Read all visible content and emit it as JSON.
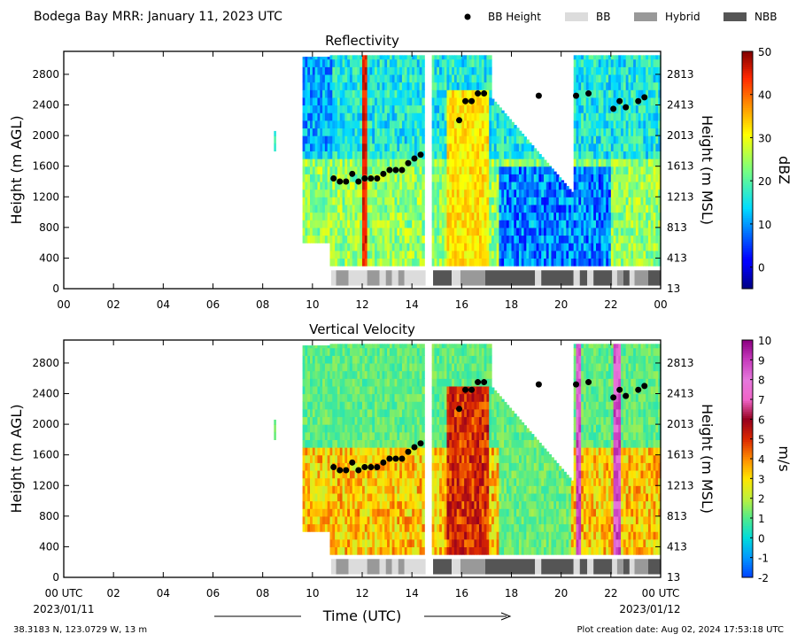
{
  "figure": {
    "title": "Bodega Bay MRR:  January 11, 2023 UTC",
    "xlabel": "Time (UTC)",
    "x_start_date": "2023/01/11",
    "x_end_date": "2023/01/12",
    "footer_left": "38.3183 N, 123.0729 W, 13 m",
    "footer_right": "Plot creation date: Aug 02, 2024 17:53:18 UTC"
  },
  "legend": [
    {
      "label": "BB Height",
      "kind": "dot",
      "color": "#000000"
    },
    {
      "label": "BB",
      "kind": "rect",
      "color": "#dcdcdc"
    },
    {
      "label": "Hybrid",
      "kind": "rect",
      "color": "#999999"
    },
    {
      "label": "NBB",
      "kind": "rect",
      "color": "#555555"
    }
  ],
  "chart_data": [
    {
      "type": "heatmap",
      "title": "Reflectivity",
      "ylabel": "Height (m AGL)",
      "y2label": "Height (m MSL)",
      "xlim": [
        0,
        24
      ],
      "ylim": [
        0,
        3100
      ],
      "x_ticks": [
        "00",
        "02",
        "04",
        "06",
        "08",
        "10",
        "12",
        "14",
        "16",
        "18",
        "20",
        "22",
        "00"
      ],
      "y_ticks": [
        0,
        400,
        800,
        1200,
        1600,
        2000,
        2400,
        2800
      ],
      "y2_ticks": [
        13,
        413,
        813,
        1213,
        1613,
        2013,
        2413,
        2813
      ],
      "colorbar": {
        "label": "dBZ",
        "min": -5,
        "max": 50,
        "ticks": [
          0,
          10,
          20,
          30,
          40,
          50
        ],
        "colormap": "jet"
      },
      "data_coverage_hours": [
        [
          8.45,
          8.52
        ],
        [
          9.6,
          14.5
        ],
        [
          14.8,
          24.0
        ]
      ],
      "bb_height": [
        {
          "x": 10.85,
          "y": 1440
        },
        {
          "x": 11.1,
          "y": 1400
        },
        {
          "x": 11.35,
          "y": 1400
        },
        {
          "x": 11.6,
          "y": 1500
        },
        {
          "x": 11.85,
          "y": 1400
        },
        {
          "x": 12.1,
          "y": 1440
        },
        {
          "x": 12.35,
          "y": 1440
        },
        {
          "x": 12.6,
          "y": 1440
        },
        {
          "x": 12.85,
          "y": 1500
        },
        {
          "x": 13.1,
          "y": 1550
        },
        {
          "x": 13.35,
          "y": 1550
        },
        {
          "x": 13.6,
          "y": 1550
        },
        {
          "x": 13.85,
          "y": 1640
        },
        {
          "x": 14.1,
          "y": 1700
        },
        {
          "x": 14.35,
          "y": 1750
        },
        {
          "x": 15.9,
          "y": 2200
        },
        {
          "x": 16.15,
          "y": 2450
        },
        {
          "x": 16.4,
          "y": 2450
        },
        {
          "x": 16.65,
          "y": 2550
        },
        {
          "x": 16.9,
          "y": 2550
        },
        {
          "x": 19.1,
          "y": 2520
        },
        {
          "x": 20.6,
          "y": 2520
        },
        {
          "x": 21.1,
          "y": 2550
        },
        {
          "x": 22.1,
          "y": 2350
        },
        {
          "x": 22.35,
          "y": 2450
        },
        {
          "x": 22.6,
          "y": 2370
        },
        {
          "x": 23.1,
          "y": 2450
        },
        {
          "x": 23.35,
          "y": 2500
        }
      ],
      "bb_type_segments": [
        {
          "start": 10.75,
          "end": 10.95,
          "type": "BB"
        },
        {
          "start": 10.95,
          "end": 11.45,
          "type": "Hybrid"
        },
        {
          "start": 11.45,
          "end": 12.2,
          "type": "BB"
        },
        {
          "start": 12.2,
          "end": 12.7,
          "type": "Hybrid"
        },
        {
          "start": 12.7,
          "end": 12.95,
          "type": "BB"
        },
        {
          "start": 12.95,
          "end": 13.2,
          "type": "Hybrid"
        },
        {
          "start": 13.2,
          "end": 13.45,
          "type": "BB"
        },
        {
          "start": 13.45,
          "end": 13.7,
          "type": "Hybrid"
        },
        {
          "start": 13.7,
          "end": 14.55,
          "type": "BB"
        },
        {
          "start": 14.85,
          "end": 15.6,
          "type": "NBB"
        },
        {
          "start": 15.6,
          "end": 15.95,
          "type": "BB"
        },
        {
          "start": 15.95,
          "end": 16.95,
          "type": "Hybrid"
        },
        {
          "start": 16.95,
          "end": 18.95,
          "type": "NBB"
        },
        {
          "start": 18.95,
          "end": 19.2,
          "type": "BB"
        },
        {
          "start": 19.2,
          "end": 20.5,
          "type": "NBB"
        },
        {
          "start": 20.5,
          "end": 20.75,
          "type": "BB"
        },
        {
          "start": 20.75,
          "end": 21.05,
          "type": "NBB"
        },
        {
          "start": 21.05,
          "end": 21.3,
          "type": "BB"
        },
        {
          "start": 21.3,
          "end": 22.05,
          "type": "NBB"
        },
        {
          "start": 22.05,
          "end": 22.25,
          "type": "BB"
        },
        {
          "start": 22.25,
          "end": 22.5,
          "type": "Hybrid"
        },
        {
          "start": 22.5,
          "end": 22.75,
          "type": "NBB"
        },
        {
          "start": 22.75,
          "end": 22.95,
          "type": "BB"
        },
        {
          "start": 22.95,
          "end": 23.5,
          "type": "Hybrid"
        },
        {
          "start": 23.5,
          "end": 24.0,
          "type": "NBB"
        }
      ]
    },
    {
      "type": "heatmap",
      "title": "Vertical Velocity",
      "ylabel": "Height (m AGL)",
      "y2label": "Height (m MSL)",
      "xlim": [
        0,
        24
      ],
      "ylim": [
        0,
        3100
      ],
      "x_ticks": [
        "00 UTC",
        "02",
        "04",
        "06",
        "08",
        "10",
        "12",
        "14",
        "16",
        "18",
        "20",
        "22",
        "00 UTC"
      ],
      "y_ticks": [
        0,
        400,
        800,
        1200,
        1600,
        2000,
        2400,
        2800
      ],
      "y2_ticks": [
        13,
        413,
        813,
        1213,
        1613,
        2013,
        2413,
        2813
      ],
      "colorbar": {
        "label": "m/s",
        "min": -2,
        "max": 10,
        "ticks": [
          -2,
          -1,
          0,
          1,
          2,
          3,
          4,
          5,
          6,
          7,
          8,
          9,
          10
        ],
        "colormap": "velocity"
      },
      "data_coverage_hours": [
        [
          8.45,
          8.52
        ],
        [
          9.6,
          14.5
        ],
        [
          14.8,
          24.0
        ]
      ],
      "bb_height": [
        {
          "x": 10.85,
          "y": 1440
        },
        {
          "x": 11.1,
          "y": 1400
        },
        {
          "x": 11.35,
          "y": 1400
        },
        {
          "x": 11.6,
          "y": 1500
        },
        {
          "x": 11.85,
          "y": 1400
        },
        {
          "x": 12.1,
          "y": 1440
        },
        {
          "x": 12.35,
          "y": 1440
        },
        {
          "x": 12.6,
          "y": 1440
        },
        {
          "x": 12.85,
          "y": 1500
        },
        {
          "x": 13.1,
          "y": 1550
        },
        {
          "x": 13.35,
          "y": 1550
        },
        {
          "x": 13.6,
          "y": 1550
        },
        {
          "x": 13.85,
          "y": 1640
        },
        {
          "x": 14.1,
          "y": 1700
        },
        {
          "x": 14.35,
          "y": 1750
        },
        {
          "x": 15.9,
          "y": 2200
        },
        {
          "x": 16.15,
          "y": 2450
        },
        {
          "x": 16.4,
          "y": 2450
        },
        {
          "x": 16.65,
          "y": 2550
        },
        {
          "x": 16.9,
          "y": 2550
        },
        {
          "x": 19.1,
          "y": 2520
        },
        {
          "x": 20.6,
          "y": 2520
        },
        {
          "x": 21.1,
          "y": 2550
        },
        {
          "x": 22.1,
          "y": 2350
        },
        {
          "x": 22.35,
          "y": 2450
        },
        {
          "x": 22.6,
          "y": 2370
        },
        {
          "x": 23.1,
          "y": 2450
        },
        {
          "x": 23.35,
          "y": 2500
        }
      ],
      "bb_type_segments": [
        {
          "start": 10.75,
          "end": 10.95,
          "type": "BB"
        },
        {
          "start": 10.95,
          "end": 11.45,
          "type": "Hybrid"
        },
        {
          "start": 11.45,
          "end": 12.2,
          "type": "BB"
        },
        {
          "start": 12.2,
          "end": 12.7,
          "type": "Hybrid"
        },
        {
          "start": 12.7,
          "end": 12.95,
          "type": "BB"
        },
        {
          "start": 12.95,
          "end": 13.2,
          "type": "Hybrid"
        },
        {
          "start": 13.2,
          "end": 13.45,
          "type": "BB"
        },
        {
          "start": 13.45,
          "end": 13.7,
          "type": "Hybrid"
        },
        {
          "start": 13.7,
          "end": 14.55,
          "type": "BB"
        },
        {
          "start": 14.85,
          "end": 15.6,
          "type": "NBB"
        },
        {
          "start": 15.6,
          "end": 15.95,
          "type": "BB"
        },
        {
          "start": 15.95,
          "end": 16.95,
          "type": "Hybrid"
        },
        {
          "start": 16.95,
          "end": 18.95,
          "type": "NBB"
        },
        {
          "start": 18.95,
          "end": 19.2,
          "type": "BB"
        },
        {
          "start": 19.2,
          "end": 20.5,
          "type": "NBB"
        },
        {
          "start": 20.5,
          "end": 20.75,
          "type": "BB"
        },
        {
          "start": 20.75,
          "end": 21.05,
          "type": "NBB"
        },
        {
          "start": 21.05,
          "end": 21.3,
          "type": "BB"
        },
        {
          "start": 21.3,
          "end": 22.05,
          "type": "NBB"
        },
        {
          "start": 22.05,
          "end": 22.25,
          "type": "BB"
        },
        {
          "start": 22.25,
          "end": 22.5,
          "type": "Hybrid"
        },
        {
          "start": 22.5,
          "end": 22.75,
          "type": "NBB"
        },
        {
          "start": 22.75,
          "end": 22.95,
          "type": "BB"
        },
        {
          "start": 22.95,
          "end": 23.5,
          "type": "Hybrid"
        },
        {
          "start": 23.5,
          "end": 24.0,
          "type": "NBB"
        }
      ]
    }
  ]
}
